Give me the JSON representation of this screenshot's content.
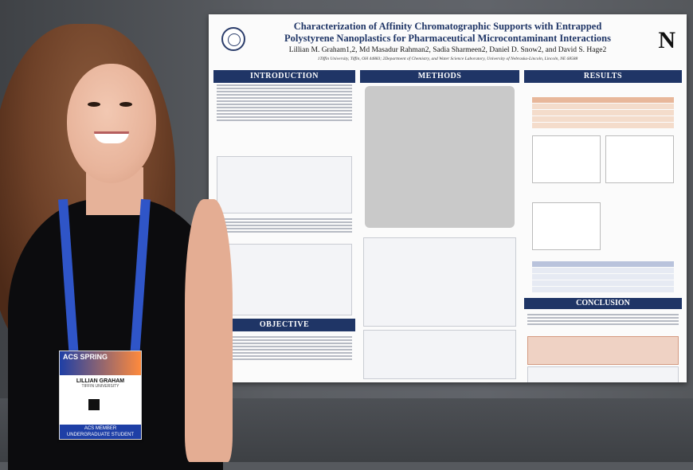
{
  "poster": {
    "title_line1": "Characterization of Affinity Chromatographic Supports with Entrapped",
    "title_line2": "Polystyrene Nanoplastics for Pharmaceutical Microcontaminant Interactions",
    "authors": "Lillian M. Graham1,2, Md Masadur Rahman2, Sadia Sharmeen2, Daniel D. Snow2, and David S. Hage2",
    "affiliation": "1Tiffin University, Tiffin, OH 44883; 2Department of Chemistry, and Water Science Laboratory, University of Nebraska-Lincoln, Lincoln, NE 68588",
    "logo_letter": "N",
    "sections": {
      "introduction": "INTRODUCTION",
      "methods": "METHODS",
      "results": "RESULTS",
      "objective": "OBJECTIVE",
      "conclusion": "CONCLUSION"
    }
  },
  "badge": {
    "event": "ACS SPRING",
    "name": "LILLIAN GRAHAM",
    "affiliation": "TIFFIN UNIVERSITY",
    "footer1": "ACS MEMBER",
    "footer2": "UNDERGRADUATE STUDENT"
  },
  "colors": {
    "poster_header": "#1f3566",
    "lanyard": "#2f55c8",
    "dress": "#0c0c0e"
  }
}
